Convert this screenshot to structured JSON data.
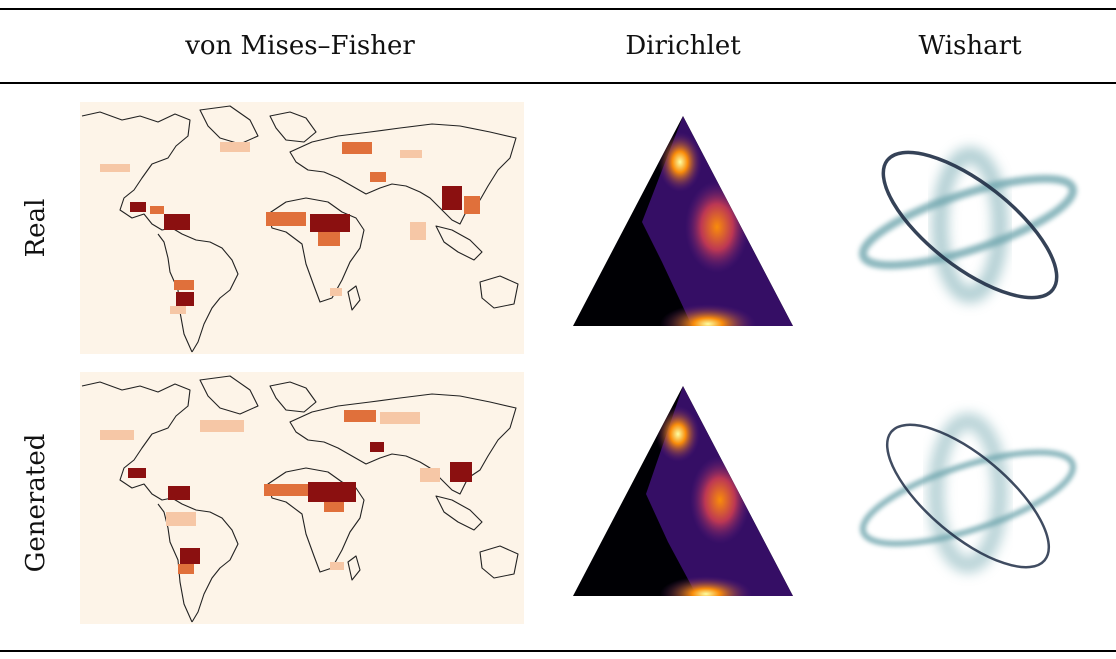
{
  "table": {
    "columns": [
      "von Mises–Fisher",
      "Dirichlet",
      "Wishart"
    ],
    "rows": [
      "Real",
      "Generated"
    ]
  },
  "colors": {
    "map_background": "#fdf4e8",
    "density_light": "#f6c7a6",
    "density_mid": "#e0703b",
    "density_high": "#8b1010",
    "simplex_dark": "#000004",
    "simplex_mid": "#5b1f7a",
    "simplex_hot": "#f98c0a",
    "simplex_peak": "#fcffa4",
    "ellipse_dark": "#1f2d45",
    "ellipse_soft": "#6fa6ae"
  },
  "icons": {
    "map": "world-map-density",
    "simplex": "dirichlet-simplex-density",
    "ellipse": "wishart-ellipse-samples"
  }
}
